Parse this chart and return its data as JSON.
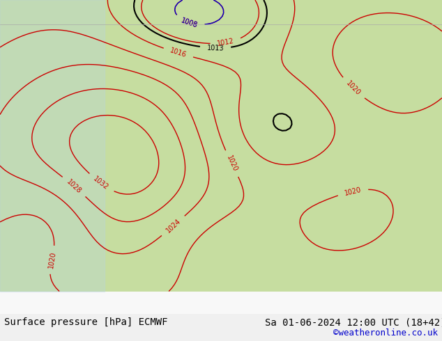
{
  "title_left": "Surface pressure [hPa] ECMWF",
  "title_right": "Sa 01-06-2024 12:00 UTC (18+42)",
  "credit": "©weatheronline.co.uk",
  "bg_color": "#d4e8b0",
  "land_color": "#c8e0a0",
  "sea_color": "#d0e8f0",
  "label_color_black": "#000000",
  "label_color_red": "#cc0000",
  "label_color_blue": "#0000cc",
  "label_fontsize": 8,
  "footer_fontsize": 10,
  "credit_fontsize": 9,
  "credit_color": "#0000cc"
}
